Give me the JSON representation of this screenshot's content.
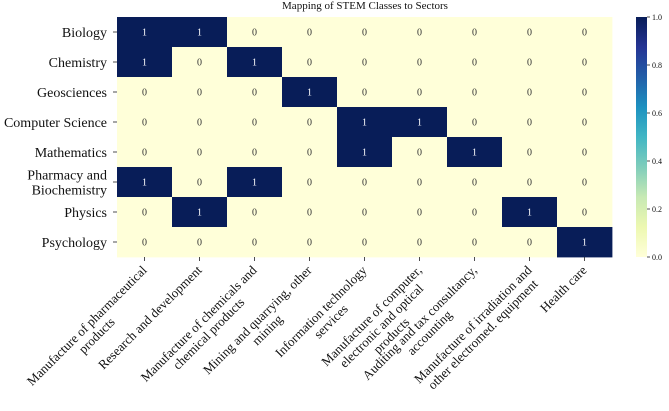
{
  "chart_data": {
    "type": "heatmap",
    "title": "Mapping of STEM Classes to Sectors",
    "rows": [
      "Biology",
      "Chemistry",
      "Geosciences",
      "Computer Science",
      "Mathematics",
      [
        "Pharmacy and",
        "Biochemistry"
      ],
      "Physics",
      "Psychology"
    ],
    "columns": [
      [
        "Manufacture of pharmaceutical",
        "products"
      ],
      [
        "Research and development"
      ],
      [
        "Manufacture of chemicals and",
        "chemical products"
      ],
      [
        "Mining and quarrying, other",
        "mining"
      ],
      [
        "Information technology",
        "services"
      ],
      [
        "Manufacture of computer,",
        "electronic and optical",
        "products"
      ],
      [
        "Auditing and tax consultancy,",
        "accounting"
      ],
      [
        "Manufacture of irradiation and",
        "other electromed. equipment"
      ],
      [
        "Health care"
      ]
    ],
    "values": [
      [
        1,
        1,
        0,
        0,
        0,
        0,
        0,
        0,
        0
      ],
      [
        1,
        0,
        1,
        0,
        0,
        0,
        0,
        0,
        0
      ],
      [
        0,
        0,
        0,
        1,
        0,
        0,
        0,
        0,
        0
      ],
      [
        0,
        0,
        0,
        0,
        1,
        1,
        0,
        0,
        0
      ],
      [
        0,
        0,
        0,
        0,
        1,
        0,
        1,
        0,
        0
      ],
      [
        1,
        0,
        1,
        0,
        0,
        0,
        0,
        0,
        0
      ],
      [
        0,
        1,
        0,
        0,
        0,
        0,
        0,
        1,
        0
      ],
      [
        0,
        0,
        0,
        0,
        0,
        0,
        0,
        0,
        1
      ]
    ],
    "colorbar": {
      "range": [
        0,
        1
      ],
      "ticks": [
        "0.0",
        "0.2",
        "0.4",
        "0.6",
        "0.8",
        "1.0"
      ],
      "colormap": "YlGnBu"
    },
    "colors": {
      "low": "#ffffd9",
      "high": "#081d58"
    }
  }
}
